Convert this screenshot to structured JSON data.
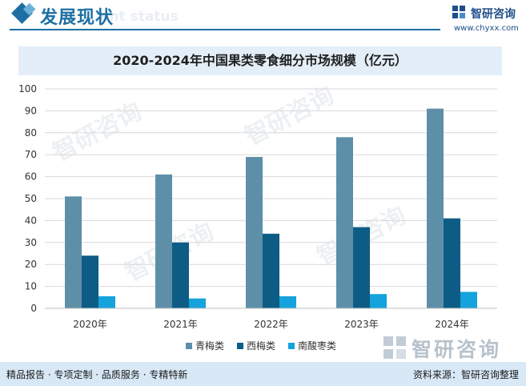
{
  "header": {
    "title": "发展现状",
    "watermark": "ent status",
    "brand_name": "智研咨询",
    "brand_url": "www.chyxx.com"
  },
  "chart_data": {
    "type": "bar",
    "title": "2020-2024年中国果类零食细分市场规模（亿元）",
    "categories": [
      "2020年",
      "2021年",
      "2022年",
      "2023年",
      "2024年"
    ],
    "series": [
      {
        "name": "青梅类",
        "values": [
          51,
          61,
          69,
          78,
          91
        ],
        "color": "#5e8fa8"
      },
      {
        "name": "西梅类",
        "values": [
          24,
          30,
          34,
          37,
          41
        ],
        "color": "#0d5c85"
      },
      {
        "name": "南酸枣类",
        "values": [
          5.5,
          4.5,
          5.5,
          6.5,
          7.5
        ],
        "color": "#14a3dc"
      }
    ],
    "ylim": [
      0,
      100
    ],
    "yticks": [
      0,
      10,
      20,
      30,
      40,
      50,
      60,
      70,
      80,
      90,
      100
    ],
    "grid": true,
    "legend_position": "bottom"
  },
  "watermark": {
    "brand": "智研咨询"
  },
  "footer": {
    "left": "精品报告 · 专项定制 · 品质服务 · 专精特新",
    "right": "资料来源：智研咨询整理"
  },
  "colors": {
    "brand_blue": "#1d6fa3",
    "title_band": "#e4eef8",
    "footer_band": "#d8e8f6",
    "grid": "#d9d9d9"
  }
}
